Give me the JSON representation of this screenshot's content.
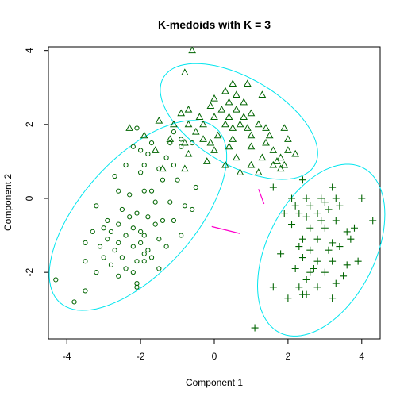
{
  "chart_data": {
    "type": "scatter",
    "title": "K-medoids with K = 3",
    "xlabel": "Component 1",
    "ylabel": "Component 2",
    "xlim": [
      -4.5,
      4.5
    ],
    "ylim": [
      -3.8,
      4.1
    ],
    "x_ticks": [
      -4,
      -2,
      0,
      2,
      4
    ],
    "y_ticks": [
      -2,
      0,
      2,
      4
    ],
    "x_tick_labels": [
      "-4",
      "-2",
      "0",
      "2",
      "4"
    ],
    "y_tick_labels": [
      "-2",
      "0",
      "2",
      "4"
    ],
    "point_color": "#006400",
    "ellipse_color": "#00e5ee",
    "connector_color": "#ff00cc",
    "series": [
      {
        "marker": "circle",
        "points": [
          [
            -2.1,
            1.9
          ],
          [
            -2.2,
            1.4
          ],
          [
            -2.0,
            1.3
          ],
          [
            -1.7,
            1.5
          ],
          [
            -1.2,
            1.5
          ],
          [
            -0.9,
            1.4
          ],
          [
            -0.6,
            1.5
          ],
          [
            -1.1,
            1.8
          ],
          [
            -1.3,
            1.1
          ],
          [
            -1.9,
            0.9
          ],
          [
            -2.7,
            0.6
          ],
          [
            -1.5,
            0.8
          ],
          [
            -1.1,
            0.9
          ],
          [
            -2.0,
            0.7
          ],
          [
            -1.4,
            0.5
          ],
          [
            -1.7,
            0.2
          ],
          [
            -2.6,
            0.2
          ],
          [
            -2.3,
            0.1
          ],
          [
            -1.9,
            0.2
          ],
          [
            -1.6,
            -0.1
          ],
          [
            -1.2,
            -0.1
          ],
          [
            -0.8,
            -0.2
          ],
          [
            -0.6,
            -0.3
          ],
          [
            -3.2,
            -0.2
          ],
          [
            -2.5,
            -0.3
          ],
          [
            -2.1,
            -0.4
          ],
          [
            -1.8,
            -0.5
          ],
          [
            -1.4,
            -0.6
          ],
          [
            -2.9,
            -0.6
          ],
          [
            -2.6,
            -0.7
          ],
          [
            -2.2,
            -0.8
          ],
          [
            -2.0,
            -0.9
          ],
          [
            -1.6,
            -0.7
          ],
          [
            -1.1,
            -0.6
          ],
          [
            -3.3,
            -0.9
          ],
          [
            -2.8,
            -0.9
          ],
          [
            -2.4,
            -1.0
          ],
          [
            -1.9,
            -1.0
          ],
          [
            -1.5,
            -1.1
          ],
          [
            -0.9,
            -1.0
          ],
          [
            -3.5,
            -1.2
          ],
          [
            -3.1,
            -1.3
          ],
          [
            -2.6,
            -1.2
          ],
          [
            -2.2,
            -1.3
          ],
          [
            -1.8,
            -1.4
          ],
          [
            -1.3,
            -1.3
          ],
          [
            -3.0,
            -1.6
          ],
          [
            -2.5,
            -1.6
          ],
          [
            -2.1,
            -1.7
          ],
          [
            -1.7,
            -1.6
          ],
          [
            -3.5,
            -1.7
          ],
          [
            -2.8,
            -1.8
          ],
          [
            -2.4,
            -1.9
          ],
          [
            -1.9,
            -1.7
          ],
          [
            -2.2,
            -2.0
          ],
          [
            -1.5,
            -1.9
          ],
          [
            -3.2,
            -2.0
          ],
          [
            -2.6,
            -2.1
          ],
          [
            -2.1,
            -2.3
          ],
          [
            -2.1,
            -2.4
          ],
          [
            -3.5,
            -2.5
          ],
          [
            -4.3,
            -2.2
          ],
          [
            -3.8,
            -2.8
          ],
          [
            -1.9,
            -1.5
          ],
          [
            -2.7,
            -1.4
          ],
          [
            -2.9,
            -1.1
          ],
          [
            -0.5,
            0.3
          ],
          [
            -0.9,
            1.6
          ],
          [
            -1.0,
            0.5
          ],
          [
            -2.4,
            0.9
          ],
          [
            -1.8,
            1.2
          ],
          [
            -2.3,
            -0.5
          ],
          [
            -3.0,
            -0.8
          ],
          [
            -2.0,
            -1.2
          ]
        ]
      },
      {
        "marker": "triangle",
        "points": [
          [
            -0.6,
            4.0
          ],
          [
            -0.8,
            3.4
          ],
          [
            0.5,
            3.1
          ],
          [
            0.9,
            3.1
          ],
          [
            0.3,
            2.9
          ],
          [
            0.6,
            2.8
          ],
          [
            1.3,
            2.8
          ],
          [
            0.0,
            2.7
          ],
          [
            0.4,
            2.6
          ],
          [
            0.8,
            2.6
          ],
          [
            -0.7,
            2.4
          ],
          [
            -0.1,
            2.5
          ],
          [
            0.2,
            2.4
          ],
          [
            0.6,
            2.4
          ],
          [
            1.0,
            2.3
          ],
          [
            -0.9,
            2.3
          ],
          [
            -0.4,
            2.2
          ],
          [
            0.0,
            2.2
          ],
          [
            0.4,
            2.2
          ],
          [
            0.8,
            2.2
          ],
          [
            1.2,
            2.0
          ],
          [
            -1.5,
            2.1
          ],
          [
            -1.1,
            2.0
          ],
          [
            -0.7,
            2.0
          ],
          [
            -0.3,
            2.0
          ],
          [
            0.3,
            2.0
          ],
          [
            0.5,
            1.9
          ],
          [
            0.7,
            2.0
          ],
          [
            1.4,
            1.9
          ],
          [
            1.9,
            1.9
          ],
          [
            -2.3,
            1.9
          ],
          [
            -1.9,
            1.7
          ],
          [
            -0.5,
            1.8
          ],
          [
            0.1,
            1.7
          ],
          [
            0.5,
            1.6
          ],
          [
            1.0,
            1.7
          ],
          [
            1.5,
            1.7
          ],
          [
            2.0,
            1.6
          ],
          [
            -1.2,
            1.6
          ],
          [
            -0.8,
            1.5
          ],
          [
            -0.1,
            1.5
          ],
          [
            0.4,
            1.4
          ],
          [
            1.0,
            1.4
          ],
          [
            1.6,
            1.3
          ],
          [
            2.0,
            1.3
          ],
          [
            -1.6,
            1.3
          ],
          [
            -0.7,
            1.2
          ],
          [
            0.0,
            1.3
          ],
          [
            0.6,
            1.1
          ],
          [
            1.3,
            1.1
          ],
          [
            1.8,
            1.1
          ],
          [
            -0.2,
            1.0
          ],
          [
            0.3,
            0.9
          ],
          [
            1.0,
            0.9
          ],
          [
            1.6,
            0.9
          ],
          [
            1.9,
            0.9
          ],
          [
            -1.4,
            0.8
          ],
          [
            -0.8,
            0.8
          ],
          [
            0.7,
            0.7
          ],
          [
            1.2,
            0.7
          ],
          [
            1.8,
            0.8
          ],
          [
            2.2,
            1.2
          ],
          [
            1.4,
            1.5
          ],
          [
            0.9,
            1.9
          ],
          [
            -0.3,
            1.6
          ],
          [
            1.7,
            1.0
          ]
        ]
      },
      {
        "marker": "plus",
        "points": [
          [
            2.4,
            0.5
          ],
          [
            3.2,
            0.3
          ],
          [
            1.6,
            0.3
          ],
          [
            2.1,
            0.0
          ],
          [
            2.5,
            0.0
          ],
          [
            2.9,
            0.0
          ],
          [
            3.3,
            0.0
          ],
          [
            4.0,
            0.0
          ],
          [
            2.2,
            -0.2
          ],
          [
            2.6,
            -0.2
          ],
          [
            3.0,
            -0.1
          ],
          [
            3.4,
            -0.2
          ],
          [
            1.9,
            -0.4
          ],
          [
            2.3,
            -0.4
          ],
          [
            2.8,
            -0.4
          ],
          [
            3.1,
            -0.3
          ],
          [
            2.5,
            -0.5
          ],
          [
            2.9,
            -0.6
          ],
          [
            3.3,
            -0.6
          ],
          [
            4.3,
            -0.6
          ],
          [
            2.1,
            -0.7
          ],
          [
            2.6,
            -0.8
          ],
          [
            3.0,
            -0.8
          ],
          [
            3.6,
            -0.9
          ],
          [
            3.8,
            -0.8
          ],
          [
            2.4,
            -1.1
          ],
          [
            2.8,
            -1.1
          ],
          [
            3.2,
            -1.2
          ],
          [
            3.7,
            -1.1
          ],
          [
            2.3,
            -1.3
          ],
          [
            2.6,
            -1.4
          ],
          [
            3.1,
            -1.4
          ],
          [
            3.4,
            -1.3
          ],
          [
            1.8,
            -1.5
          ],
          [
            2.4,
            -1.6
          ],
          [
            2.8,
            -1.7
          ],
          [
            3.2,
            -1.7
          ],
          [
            3.6,
            -1.8
          ],
          [
            2.2,
            -1.9
          ],
          [
            2.6,
            -2.0
          ],
          [
            3.0,
            -2.0
          ],
          [
            2.5,
            -2.2
          ],
          [
            2.3,
            -2.4
          ],
          [
            3.3,
            -2.3
          ],
          [
            3.5,
            -2.1
          ],
          [
            1.6,
            -2.4
          ],
          [
            2.5,
            -2.6
          ],
          [
            2.4,
            -2.6
          ],
          [
            2.8,
            -2.4
          ],
          [
            2.0,
            -2.7
          ],
          [
            3.2,
            -2.7
          ],
          [
            1.1,
            -3.5
          ],
          [
            3.9,
            -1.7
          ],
          [
            2.7,
            -1.9
          ]
        ]
      }
    ],
    "ellipses": [
      {
        "cx": -2.07,
        "cy": -0.46,
        "rx": 3.17,
        "ry": 1.53,
        "angle_deg": 48
      },
      {
        "cx": 0.67,
        "cy": 2.08,
        "rx": 2.37,
        "ry": 1.18,
        "angle_deg": -30
      },
      {
        "cx": 2.9,
        "cy": -1.4,
        "rx": 2.5,
        "ry": 1.46,
        "angle_deg": 63
      }
    ],
    "connectors": [
      {
        "from": [
          -0.07,
          -0.76
        ],
        "to": [
          0.7,
          -0.95
        ]
      },
      {
        "from": [
          1.2,
          0.25
        ],
        "to": [
          1.35,
          -0.15
        ]
      }
    ]
  }
}
